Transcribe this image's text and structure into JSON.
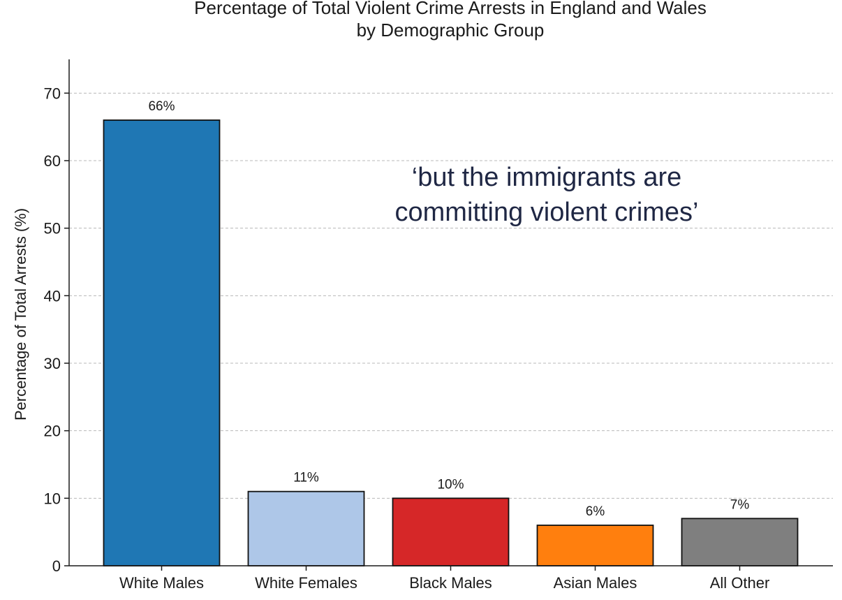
{
  "chart_data": {
    "type": "bar",
    "title": "Percentage of Total Violent Crime Arrests in England and Wales",
    "subtitle": "by Demographic Group",
    "xlabel": "",
    "ylabel": "Percentage of Total Arrests (%)",
    "ylim": [
      0,
      75
    ],
    "yticks": [
      0,
      10,
      20,
      30,
      40,
      50,
      60,
      70
    ],
    "grid": true,
    "categories": [
      "White Males",
      "White Females",
      "Black Males",
      "Asian Males",
      "All Other"
    ],
    "values": [
      66,
      11,
      10,
      6,
      7
    ],
    "value_labels": [
      "66%",
      "11%",
      "10%",
      "6%",
      "7%"
    ],
    "colors": [
      "#1f77b4",
      "#aec7e8",
      "#d62728",
      "#ff7f0e",
      "#7f7f7f"
    ],
    "annotation": {
      "lines": [
        "‘but the immigrants are",
        "committing violent crimes’"
      ],
      "color": "#1f2744"
    }
  }
}
